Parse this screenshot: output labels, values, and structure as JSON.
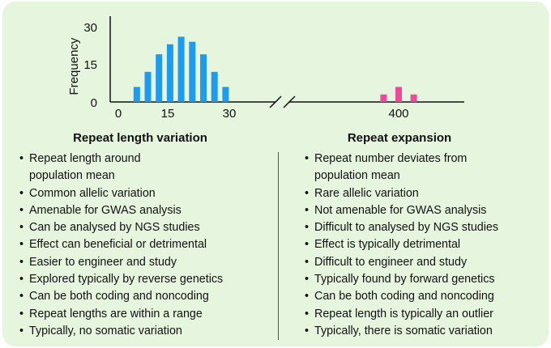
{
  "chart_data": {
    "type": "bar",
    "ylabel": "Frequency",
    "yticks": [
      "0",
      "15",
      "30"
    ],
    "ylim": [
      0,
      32
    ],
    "xticks": [
      "0",
      "15",
      "30",
      "400"
    ],
    "axis_break": true,
    "series": [
      {
        "color": "#1c9bf0",
        "x": [
          5,
          8,
          11,
          14,
          17,
          20,
          23,
          26,
          29
        ],
        "values": [
          6,
          12,
          19,
          23,
          26,
          24,
          19,
          12,
          6
        ]
      },
      {
        "color": "#ea4c9b",
        "x": [
          397,
          400,
          403
        ],
        "values": [
          3,
          6,
          3
        ]
      }
    ]
  },
  "left": {
    "title": "Repeat length variation",
    "items": [
      "Repeat length around\npopulation mean",
      "Common allelic variation",
      "Amenable for GWAS analysis",
      "Can be analysed by NGS studies",
      "Effect can beneficial or detrimental",
      "Easier to engineer and study",
      "Explored typically by reverse genetics",
      "Can be both coding and noncoding",
      "Repeat lengths are within a range",
      "Typically, no somatic variation"
    ]
  },
  "right": {
    "title": "Repeat expansion",
    "items": [
      "Repeat number deviates from\npopulation mean",
      "Rare allelic variation",
      "Not amenable for GWAS analysis",
      "Difficult to analysed by NGS studies",
      "Effect is typically detrimental",
      "Difficult to engineer and study",
      "Typically found by forward genetics",
      "Can be both coding and noncoding",
      "Repeat length is typically an outlier",
      "Typically, there is somatic variation"
    ]
  }
}
